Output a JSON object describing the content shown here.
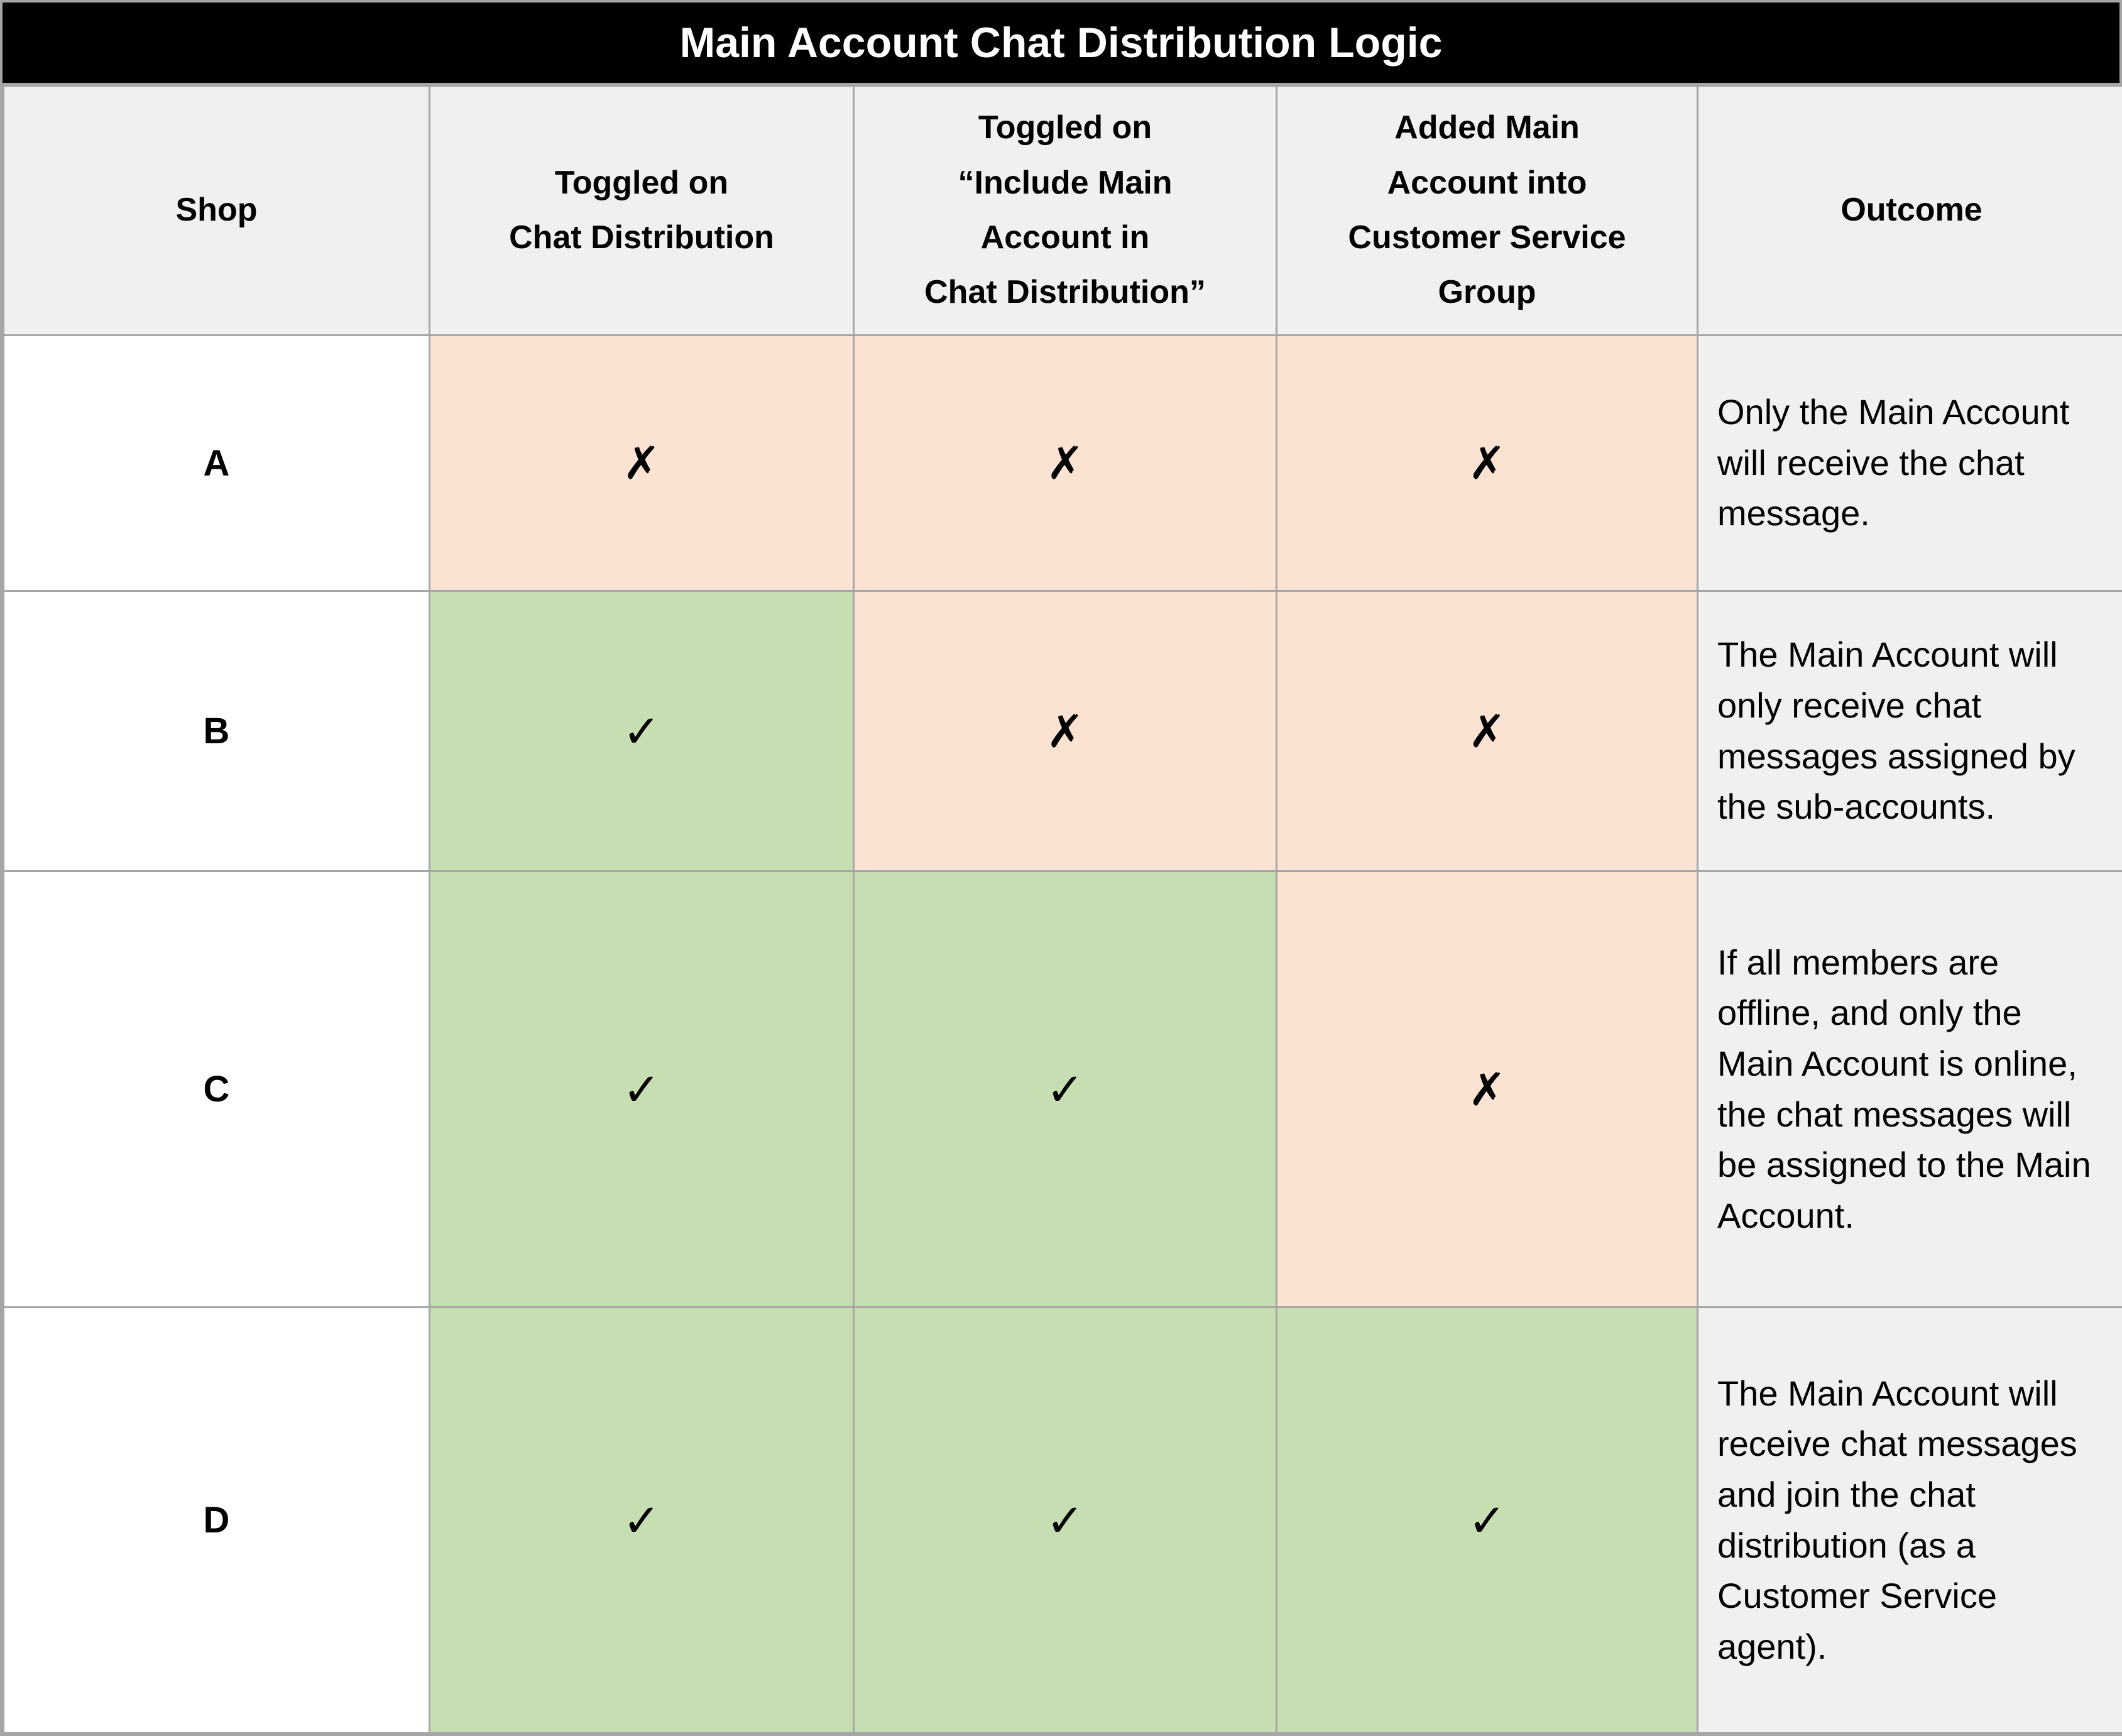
{
  "title": "Main Account Chat Distribution Logic",
  "colors": {
    "title_bg": "#000000",
    "title_fg": "#ffffff",
    "header_bg": "#f0f0f0",
    "outcome_bg": "#f0f0f0",
    "yes_bg": "#c7deb2",
    "no_bg": "#fbe3d4",
    "shop_bg": "#ffffff",
    "border": "#a6a6a6",
    "text": "#000000"
  },
  "marks": {
    "yes_glyph": "✓",
    "no_glyph": "✗"
  },
  "columns": [
    {
      "label": "Shop"
    },
    {
      "label": "Toggled on\nChat Distribution"
    },
    {
      "label": "Toggled on\n“Include Main\nAccount in\nChat Distribution”"
    },
    {
      "label": "Added Main\nAccount into\nCustomer Service\nGroup"
    },
    {
      "label": "Outcome"
    }
  ],
  "rows": [
    {
      "shop": "A",
      "cells": [
        {
          "state": "no",
          "glyph": "✗"
        },
        {
          "state": "no",
          "glyph": "✗"
        },
        {
          "state": "no",
          "glyph": "✗"
        }
      ],
      "outcome": "Only the Main Account will receive the chat message."
    },
    {
      "shop": "B",
      "cells": [
        {
          "state": "yes",
          "glyph": "✓"
        },
        {
          "state": "no",
          "glyph": "✗"
        },
        {
          "state": "no",
          "glyph": "✗"
        }
      ],
      "outcome": "The Main Account will only receive chat messages assigned by the sub-accounts."
    },
    {
      "shop": "C",
      "cells": [
        {
          "state": "yes",
          "glyph": "✓"
        },
        {
          "state": "yes",
          "glyph": "✓"
        },
        {
          "state": "no",
          "glyph": "✗"
        }
      ],
      "outcome": "If all members are offline, and only the Main Account is online, the chat messages will be assigned to the Main Account."
    },
    {
      "shop": "D",
      "cells": [
        {
          "state": "yes",
          "glyph": "✓"
        },
        {
          "state": "yes",
          "glyph": "✓"
        },
        {
          "state": "yes",
          "glyph": "✓"
        }
      ],
      "outcome": "The Main Account will receive chat messages and join the chat distribution (as a Customer Service agent)."
    }
  ]
}
